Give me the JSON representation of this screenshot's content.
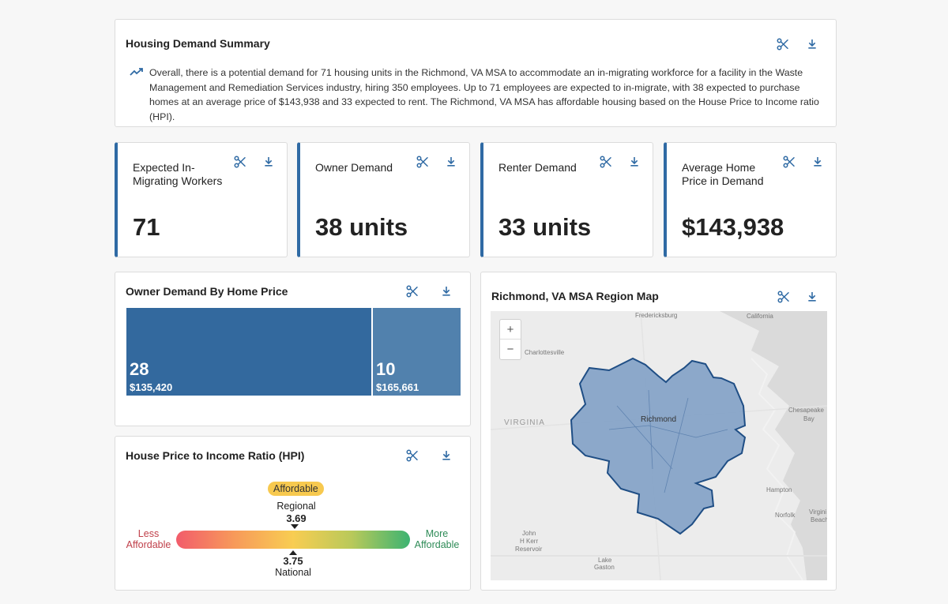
{
  "summary": {
    "title": "Housing Demand Summary",
    "text": "Overall, there is a potential demand for 71 housing units in the Richmond, VA MSA to accommodate an in-migrating workforce for a facility in the Waste Management and Remediation Services industry, hiring 350 employees. Up to 71 employees are expected to in-migrate, with 38 expected to purchase homes at an average price of $143,938 and 33 expected to rent. The Richmond, VA MSA has affordable housing based on the House Price to Income ratio (HPI)."
  },
  "kpis": [
    {
      "label": "Expected In-Migrating Workers",
      "value": "71"
    },
    {
      "label": "Owner Demand",
      "value": "38 units"
    },
    {
      "label": "Renter Demand",
      "value": "33 units"
    },
    {
      "label": "Average Home Price in Demand",
      "value": "$143,938"
    }
  ],
  "owner_demand": {
    "title": "Owner Demand By Home Price",
    "cells": [
      {
        "count": "28",
        "price": "$135,420"
      },
      {
        "count": "10",
        "price": "$165,661"
      }
    ]
  },
  "chart_data": {
    "type": "treemap",
    "title": "Owner Demand By Home Price",
    "categories": [
      "$135,420",
      "$165,661"
    ],
    "values": [
      28,
      10
    ]
  },
  "hpi": {
    "title": "House Price to Income Ratio (HPI)",
    "badge": "Affordable",
    "regional_label": "Regional",
    "regional_value": "3.69",
    "national_label": "National",
    "national_value": "3.75",
    "less_label": "Less Affordable",
    "more_label": "More Affordable"
  },
  "map": {
    "title": "Richmond, VA MSA Region Map",
    "zoom_in": "+",
    "zoom_out": "−",
    "labels": {
      "fredericksburg": "Fredericksburg",
      "california": "California",
      "charlottesville": "Charlottesville",
      "virginia": "VIRGINIA",
      "richmond": "Richmond",
      "chesapeake": "Chesapeake",
      "bay": "Bay",
      "hampton": "Hampton",
      "norfolk": "Norfolk",
      "virginia_beach_1": "Virgini",
      "virginia_beach_2": "Beach",
      "kerr_1": "John",
      "kerr_2": "H Kerr",
      "kerr_3": "Reservoir",
      "lake_1": "Lake",
      "lake_2": "Gaston"
    }
  },
  "colors": {
    "accent": "#2f6aa4",
    "treemap_primary": "#33699e",
    "treemap_secondary": "#5181ad",
    "region_fill": "#7b9cc4",
    "region_stroke": "#1f4e85"
  }
}
